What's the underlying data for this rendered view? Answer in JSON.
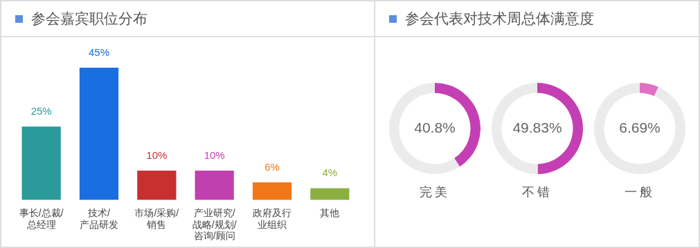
{
  "chart_data": [
    {
      "type": "bar",
      "title": "参会嘉宾职位分布",
      "categories": [
        "事长/总裁/总经理",
        "技术/产品研发",
        "市场/采购/销售",
        "产业研究/战略/规划/咨询/顾问",
        "政府及行业组织",
        "其他"
      ],
      "values": [
        25,
        45,
        10,
        10,
        6,
        4
      ],
      "colors": [
        "#2a9a9a",
        "#1a6fe0",
        "#c83030",
        "#c040b0",
        "#f07818",
        "#8cb040"
      ],
      "value_labels": [
        "25%",
        "45%",
        "10%",
        "10%",
        "6%",
        "4%"
      ],
      "tick_labels": "x",
      "legend": false
    },
    {
      "type": "donut",
      "title": "参会代表对技术周总体满意度",
      "xlabel": "完美",
      "categories": [
        null,
        null
      ],
      "values": [
        40.8,
        59.2
      ],
      "colors": [
        "#c43fb4",
        "#ebebeb"
      ],
      "value_labels": [
        "40.8%",
        null
      ],
      "legend": false
    },
    {
      "type": "donut",
      "xlabel": "不错",
      "categories": [
        null,
        null
      ],
      "values": [
        49.83,
        50.17
      ],
      "colors": [
        "#c43fb4",
        "#ebebeb"
      ],
      "value_labels": [
        "49.83%",
        null
      ],
      "legend": false
    },
    {
      "type": "donut",
      "xlabel": "一般",
      "categories": [
        null,
        null
      ],
      "values": [
        6.69,
        93.31
      ],
      "colors": [
        "#e070c4",
        "#ebebeb"
      ],
      "value_labels": [
        "6.69%",
        null
      ],
      "legend": false
    }
  ]
}
